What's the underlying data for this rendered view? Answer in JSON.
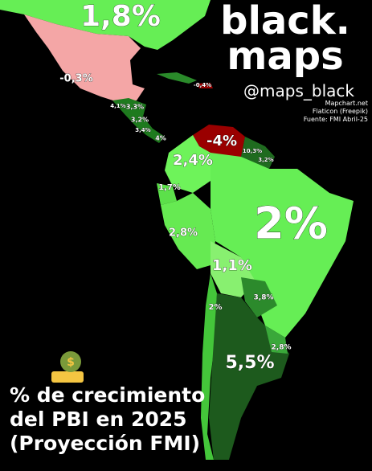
{
  "brand": {
    "name_line1": "black.",
    "name_line2": "maps",
    "handle": "@maps_black"
  },
  "credits": [
    "Mapchart.net",
    "Flaticon (Freepik)",
    "Fuente: FMI Abril-25"
  ],
  "title": [
    "% de crecimiento",
    "del PBI en 2025",
    "(Proyección FMI)"
  ],
  "labels": [
    {
      "text": "1,8%"
    },
    {
      "text": "-0,3%"
    },
    {
      "text": "-0,4%"
    },
    {
      "text": "4,1%"
    },
    {
      "text": "3,3%"
    },
    {
      "text": "3,2%"
    },
    {
      "text": "3,4%"
    },
    {
      "text": "4%"
    },
    {
      "text": "-4%"
    },
    {
      "text": "10,3%"
    },
    {
      "text": "3,2%"
    },
    {
      "text": "2,4%"
    },
    {
      "text": "1,7%"
    },
    {
      "text": "2,8%"
    },
    {
      "text": "2%"
    },
    {
      "text": "1,1%"
    },
    {
      "text": "3,8%"
    },
    {
      "text": "2%"
    },
    {
      "text": "2,8%"
    },
    {
      "text": "5,5%"
    }
  ]
}
